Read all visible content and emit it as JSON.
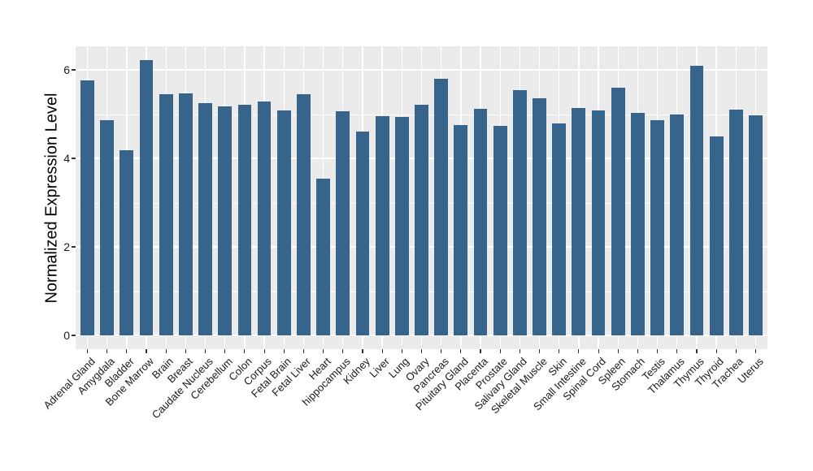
{
  "chart_data": {
    "type": "bar",
    "title": "",
    "xlabel": "",
    "ylabel": "Normalized Expression Level",
    "categories": [
      "Adrenal Gland",
      "Amygdala",
      "Bladder",
      "Bone Marrow",
      "Brain",
      "Breast",
      "Caudate Nucleus",
      "Cerebellum",
      "Colon",
      "Corpus",
      "Fetal Brain",
      "Fetal Liver",
      "Heart",
      "hippocampus",
      "Kidney",
      "Liver",
      "Lung",
      "Ovary",
      "Pancreas",
      "Pituitary Gland",
      "Placenta",
      "Prostate",
      "Salivary Gland",
      "Skeletal Muscle",
      "Skin",
      "Small Intestine",
      "Spinal Cord",
      "Spleen",
      "Stomach",
      "Testis",
      "Thalamus",
      "Thymus",
      "Thyroid",
      "Trachea",
      "Uterus"
    ],
    "values": [
      5.77,
      4.87,
      4.18,
      6.22,
      5.45,
      5.47,
      5.25,
      5.18,
      5.21,
      5.29,
      5.08,
      5.45,
      3.55,
      5.06,
      4.6,
      4.95,
      4.94,
      5.21,
      5.79,
      4.76,
      5.12,
      4.73,
      5.55,
      5.35,
      4.79,
      5.14,
      5.08,
      5.6,
      5.02,
      4.87,
      4.99,
      6.1,
      4.49,
      5.1,
      4.97
    ],
    "ylim": [
      -0.31,
      6.53
    ],
    "yticks": [
      0,
      2,
      4,
      6
    ],
    "minor_gridlines": [
      1,
      3,
      5
    ],
    "grid": "on",
    "legend": "none",
    "x_tick_rotation_deg": 45,
    "bar_color": "#36648B",
    "panel_bg": "#EBEBEB",
    "grid_color": "#FFFFFF",
    "tick_label_color": "#1A1A1A",
    "axis_title_color": "#000000"
  }
}
